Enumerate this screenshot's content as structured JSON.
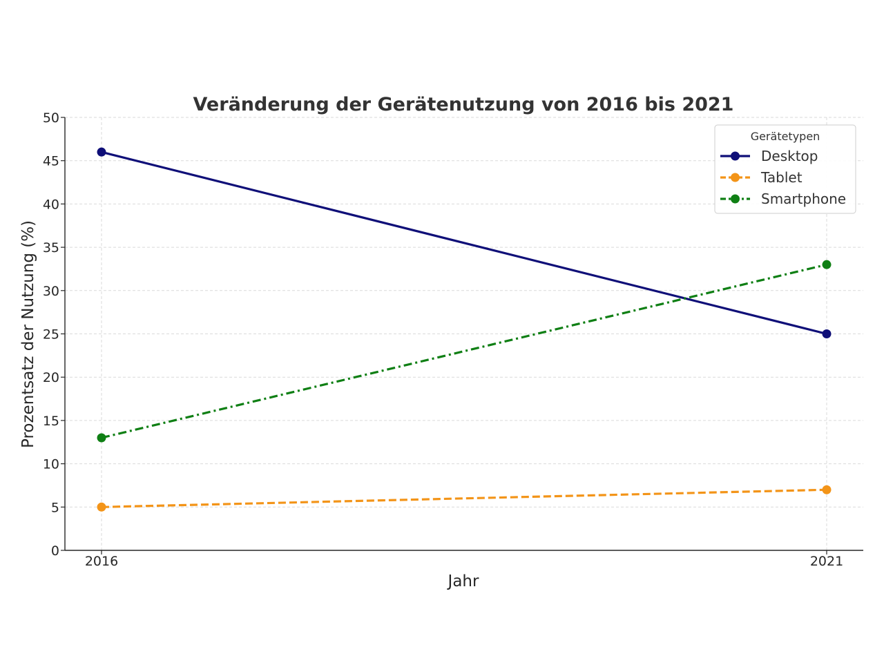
{
  "chart_data": {
    "type": "line",
    "title": "Veränderung der Gerätenutzung von 2016 bis 2021",
    "xlabel": "Jahr",
    "ylabel": "Prozentsatz der Nutzung (%)",
    "x": [
      "2016",
      "2021"
    ],
    "ylim": [
      0,
      50
    ],
    "yticks": [
      0,
      5,
      10,
      15,
      20,
      25,
      30,
      35,
      40,
      45,
      50
    ],
    "grid": true,
    "legend": {
      "title": "Gerätetypen",
      "placement": "top-right"
    },
    "series": [
      {
        "name": "Desktop",
        "values": [
          46,
          25
        ],
        "color": "#0f0f78",
        "linestyle": "solid"
      },
      {
        "name": "Tablet",
        "values": [
          5,
          7
        ],
        "color": "#f39418",
        "linestyle": "dashed"
      },
      {
        "name": "Smartphone",
        "values": [
          13,
          33
        ],
        "color": "#0f7f14",
        "linestyle": "dashdot"
      }
    ]
  }
}
